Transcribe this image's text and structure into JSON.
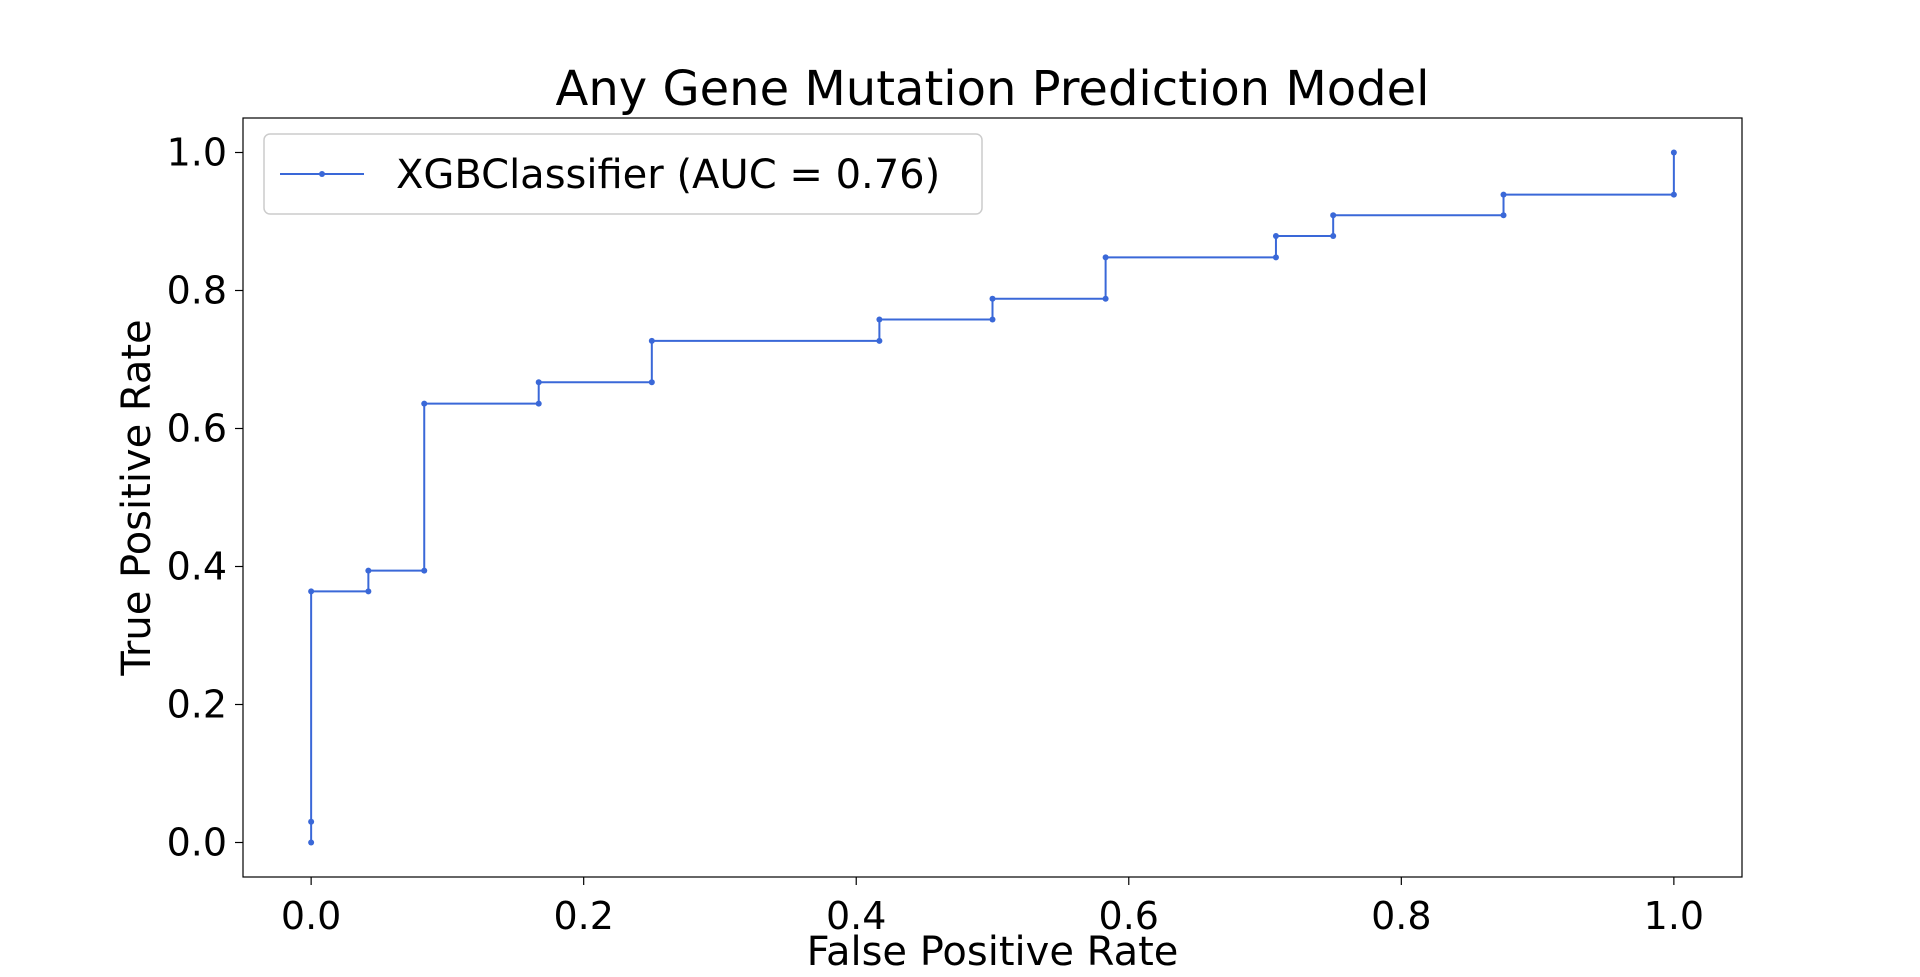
{
  "chart_data": {
    "type": "line",
    "title": "Any Gene Mutation Prediction Model",
    "xlabel": "False Positive Rate",
    "ylabel": "True Positive Rate",
    "xlim": [
      -0.05,
      1.05
    ],
    "ylim": [
      -0.05,
      1.05
    ],
    "xticks": [
      0.0,
      0.2,
      0.4,
      0.6,
      0.8,
      1.0
    ],
    "xtick_labels": [
      "0.0",
      "0.2",
      "0.4",
      "0.6",
      "0.8",
      "1.0"
    ],
    "yticks": [
      0.0,
      0.2,
      0.4,
      0.6,
      0.8,
      1.0
    ],
    "ytick_labels": [
      "0.0",
      "0.2",
      "0.4",
      "0.6",
      "0.8",
      "1.0"
    ],
    "grid": false,
    "legend_position": "upper left",
    "series": [
      {
        "name": "XGBClassifier (AUC = 0.76)",
        "color": "#3a68d8",
        "marker": "dot",
        "x": [
          0.0,
          0.0,
          0.0,
          0.042,
          0.042,
          0.083,
          0.083,
          0.167,
          0.167,
          0.25,
          0.25,
          0.417,
          0.417,
          0.5,
          0.5,
          0.583,
          0.583,
          0.708,
          0.708,
          0.75,
          0.75,
          0.875,
          0.875,
          1.0,
          1.0
        ],
        "y": [
          0.0,
          0.03,
          0.364,
          0.364,
          0.394,
          0.394,
          0.636,
          0.636,
          0.667,
          0.667,
          0.727,
          0.727,
          0.758,
          0.758,
          0.788,
          0.788,
          0.848,
          0.848,
          0.879,
          0.879,
          0.909,
          0.909,
          0.939,
          0.939,
          1.0
        ]
      }
    ]
  }
}
